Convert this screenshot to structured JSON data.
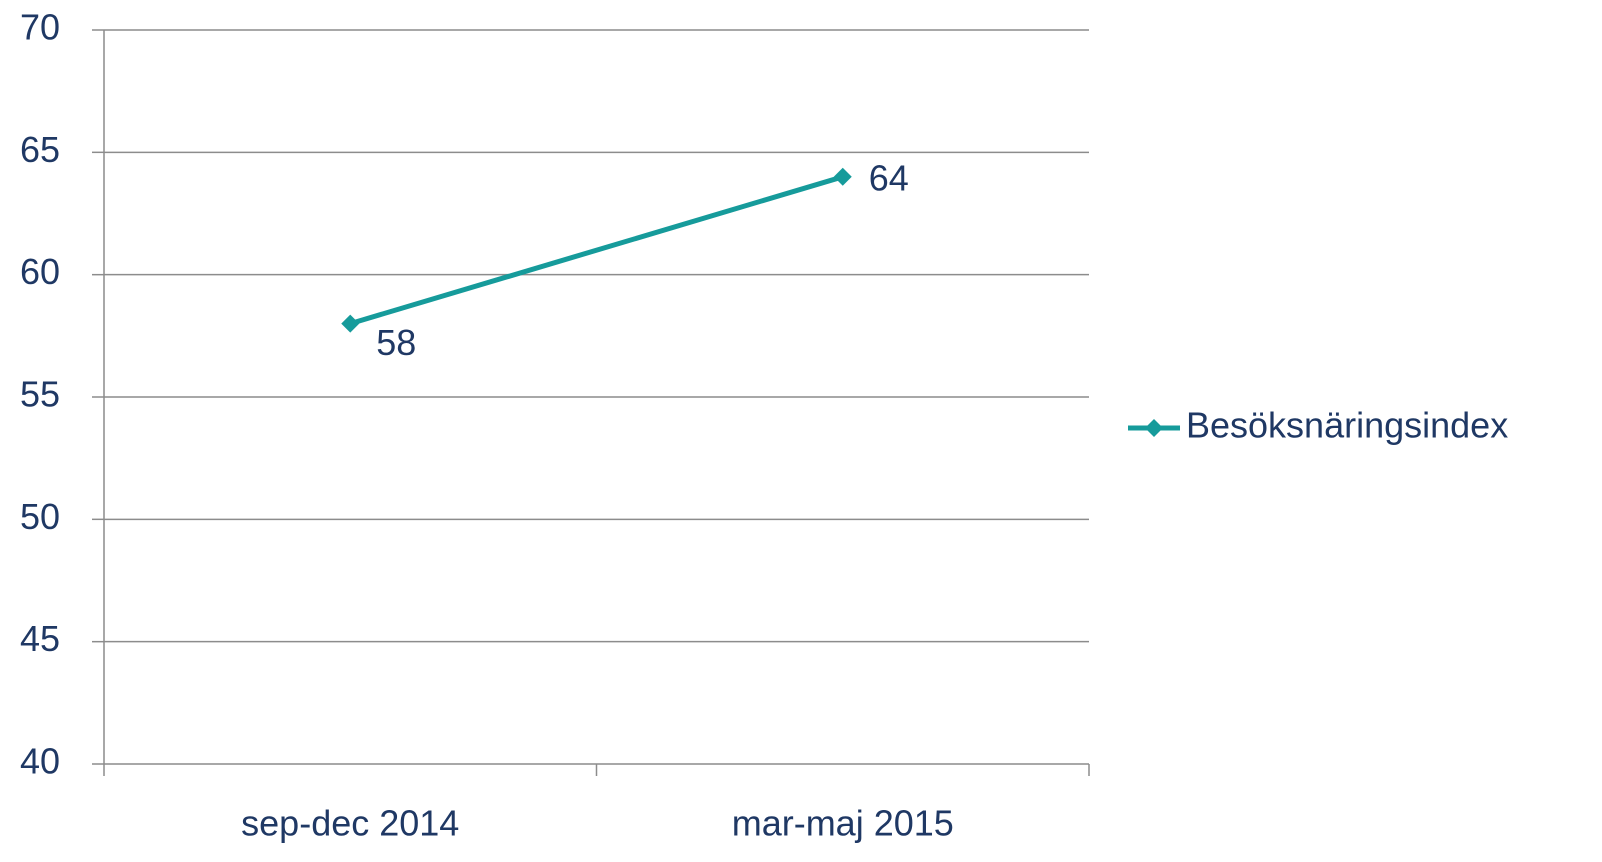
{
  "chart_data": {
    "type": "line",
    "categories": [
      "sep-dec 2014",
      "mar-maj 2015"
    ],
    "series": [
      {
        "name": "Besöksnäringsindex",
        "color": "#169b9b",
        "values": [
          58,
          64
        ]
      }
    ],
    "ylim": [
      40,
      70
    ],
    "yticks": [
      40,
      45,
      50,
      55,
      60,
      65,
      70
    ],
    "grid": true,
    "legend": "right"
  }
}
